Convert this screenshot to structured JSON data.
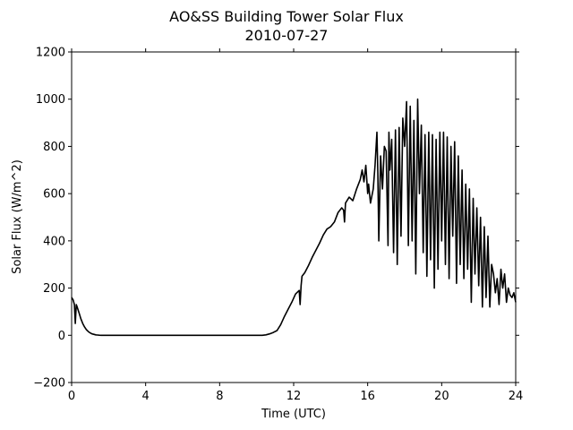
{
  "chart_data": {
    "type": "line",
    "title": "AO&SS Building Tower Solar Flux",
    "subtitle": "2010-07-27",
    "xlabel": "Time (UTC)",
    "ylabel": "Solar Flux (W/m^2)",
    "xlim": [
      0,
      24
    ],
    "ylim": [
      -200,
      1200
    ],
    "xticks": [
      0,
      4,
      8,
      12,
      16,
      20,
      24
    ],
    "yticks": [
      -200,
      0,
      200,
      400,
      600,
      800,
      1000,
      1200
    ],
    "ytick_labels": [
      "−200",
      "0",
      "200",
      "400",
      "600",
      "800",
      "1000",
      "1200"
    ],
    "grid": false,
    "line_color": "#000000",
    "series": [
      {
        "x": [
          0,
          0.08,
          0.15,
          0.2,
          0.25,
          0.3,
          0.4,
          0.5,
          0.6,
          0.7,
          0.8,
          0.9,
          1.0,
          1.1,
          1.2,
          1.3,
          1.4,
          1.5,
          1.6,
          1.7,
          1.8,
          1.9,
          2.0,
          2.3,
          2.7,
          3.0,
          4,
          5,
          6,
          7,
          8,
          9,
          10,
          10.3,
          10.5,
          10.7,
          10.9,
          11.1,
          11.3,
          11.5,
          11.7,
          11.9,
          12.1,
          12.3,
          12.35,
          12.4,
          12.45,
          12.6,
          12.8,
          13.0,
          13.2,
          13.4,
          13.6,
          13.8,
          14.0,
          14.2,
          14.4,
          14.6,
          14.7,
          14.75,
          14.8,
          15.0,
          15.2,
          15.4,
          15.6,
          15.7,
          15.8,
          15.9,
          16.0,
          16.05,
          16.15,
          16.3,
          16.4,
          16.5,
          16.55,
          16.6,
          16.7,
          16.8,
          16.9,
          17.0,
          17.1,
          17.15,
          17.2,
          17.3,
          17.4,
          17.5,
          17.6,
          17.7,
          17.8,
          17.9,
          18.0,
          18.1,
          18.2,
          18.3,
          18.4,
          18.5,
          18.6,
          18.7,
          18.8,
          18.9,
          19.0,
          19.1,
          19.2,
          19.3,
          19.4,
          19.5,
          19.6,
          19.7,
          19.8,
          19.9,
          20.0,
          20.1,
          20.2,
          20.3,
          20.4,
          20.5,
          20.6,
          20.7,
          20.8,
          20.9,
          21.0,
          21.1,
          21.2,
          21.3,
          21.4,
          21.5,
          21.6,
          21.7,
          21.8,
          21.9,
          22.0,
          22.1,
          22.2,
          22.3,
          22.4,
          22.5,
          22.6,
          22.7,
          22.8,
          22.9,
          23.0,
          23.1,
          23.2,
          23.3,
          23.4,
          23.5,
          23.6,
          23.7,
          23.8,
          23.9,
          24.0
        ],
        "y": [
          160,
          150,
          130,
          50,
          130,
          120,
          95,
          70,
          50,
          35,
          24,
          16,
          10,
          6,
          4,
          2,
          1,
          0.5,
          0,
          0,
          0,
          0,
          0,
          0,
          0,
          0,
          0,
          0,
          0,
          0,
          0,
          0,
          0,
          0,
          2,
          6,
          12,
          20,
          45,
          80,
          110,
          140,
          175,
          190,
          130,
          210,
          250,
          265,
          295,
          330,
          360,
          390,
          425,
          450,
          460,
          480,
          520,
          540,
          530,
          480,
          560,
          585,
          570,
          620,
          660,
          700,
          650,
          720,
          600,
          640,
          560,
          620,
          720,
          860,
          690,
          400,
          760,
          620,
          800,
          780,
          380,
          860,
          700,
          830,
          350,
          870,
          300,
          880,
          420,
          920,
          800,
          990,
          380,
          970,
          400,
          910,
          260,
          1000,
          600,
          890,
          350,
          850,
          250,
          860,
          320,
          850,
          200,
          830,
          280,
          860,
          400,
          860,
          300,
          840,
          240,
          800,
          420,
          820,
          220,
          760,
          300,
          700,
          240,
          640,
          280,
          620,
          140,
          580,
          260,
          540,
          210,
          500,
          120,
          460,
          160,
          420,
          120,
          300,
          260,
          180,
          240,
          130,
          280,
          200,
          260,
          140,
          200,
          170,
          160,
          180,
          140
        ]
      }
    ]
  }
}
